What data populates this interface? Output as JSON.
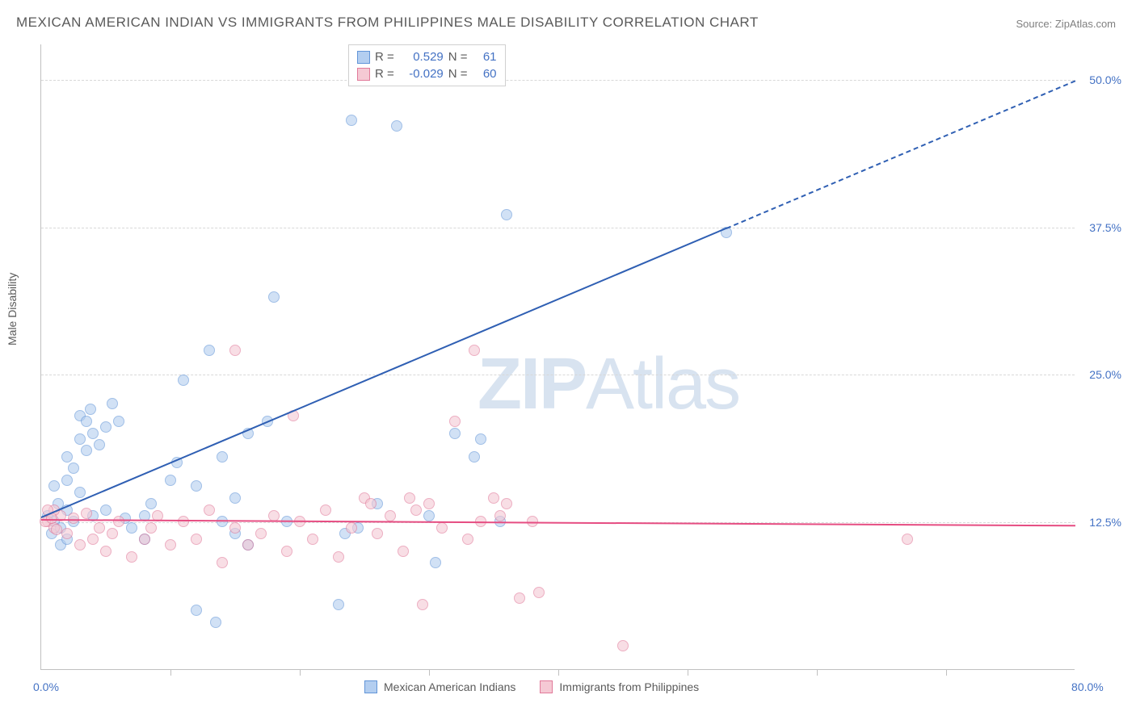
{
  "title": "MEXICAN AMERICAN INDIAN VS IMMIGRANTS FROM PHILIPPINES MALE DISABILITY CORRELATION CHART",
  "source": "Source: ZipAtlas.com",
  "ylabel": "Male Disability",
  "watermark_bold": "ZIP",
  "watermark_light": "Atlas",
  "chart": {
    "type": "scatter",
    "xlim": [
      0,
      80
    ],
    "ylim": [
      0,
      53
    ],
    "yticks": [
      12.5,
      25.0,
      37.5,
      50.0
    ],
    "ytick_labels": [
      "12.5%",
      "25.0%",
      "37.5%",
      "50.0%"
    ],
    "xticks": [
      10,
      20,
      30,
      40,
      50,
      60,
      70
    ],
    "xlabel_start": "0.0%",
    "xlabel_end": "80.0%",
    "background_color": "#ffffff",
    "grid_color": "#d8d8d8"
  },
  "series": [
    {
      "name": "Mexican American Indians",
      "color_fill": "#b3cef0",
      "color_stroke": "#6295d8",
      "R": "0.529",
      "N": "61",
      "trend": {
        "x1": 0,
        "y1": 13.0,
        "x2": 53,
        "y2": 37.5,
        "x2_dash": 80,
        "y2_dash": 50.0,
        "line_color": "#2f5fb3"
      },
      "points": [
        [
          0.5,
          13.0
        ],
        [
          1.0,
          12.5
        ],
        [
          1.5,
          12.0
        ],
        [
          2.0,
          13.5
        ],
        [
          0.8,
          11.5
        ],
        [
          1.3,
          14.0
        ],
        [
          2.0,
          16.0
        ],
        [
          2.5,
          17.0
        ],
        [
          3.0,
          15.0
        ],
        [
          1.5,
          10.5
        ],
        [
          2.0,
          11.0
        ],
        [
          3.5,
          18.5
        ],
        [
          4.0,
          20.0
        ],
        [
          3.0,
          19.5
        ],
        [
          2.5,
          12.5
        ],
        [
          5.0,
          20.5
        ],
        [
          5.5,
          22.5
        ],
        [
          6.0,
          21.0
        ],
        [
          4.5,
          19.0
        ],
        [
          6.5,
          12.8
        ],
        [
          3.8,
          22.0
        ],
        [
          7.0,
          12.0
        ],
        [
          8.0,
          13.0
        ],
        [
          10.0,
          16.0
        ],
        [
          10.5,
          17.5
        ],
        [
          11.0,
          24.5
        ],
        [
          12.0,
          15.5
        ],
        [
          13.0,
          27.0
        ],
        [
          14.0,
          18.0
        ],
        [
          15.0,
          14.5
        ],
        [
          16.0,
          20.0
        ],
        [
          17.5,
          21.0
        ],
        [
          18.0,
          31.5
        ],
        [
          19.0,
          12.5
        ],
        [
          12.0,
          5.0
        ],
        [
          13.5,
          4.0
        ],
        [
          16.0,
          10.5
        ],
        [
          23.0,
          5.5
        ],
        [
          23.5,
          11.5
        ],
        [
          24.0,
          46.5
        ],
        [
          24.5,
          12.0
        ],
        [
          26.0,
          14.0
        ],
        [
          27.5,
          46.0
        ],
        [
          14.0,
          12.5
        ],
        [
          30.0,
          13.0
        ],
        [
          30.5,
          9.0
        ],
        [
          32.0,
          20.0
        ],
        [
          33.5,
          18.0
        ],
        [
          34.0,
          19.5
        ],
        [
          35.5,
          12.5
        ],
        [
          36.0,
          38.5
        ],
        [
          15.0,
          11.5
        ],
        [
          1.0,
          15.5
        ],
        [
          2.0,
          18.0
        ],
        [
          3.0,
          21.5
        ],
        [
          5.0,
          13.5
        ],
        [
          3.5,
          21.0
        ],
        [
          8.5,
          14.0
        ],
        [
          4.0,
          13.0
        ],
        [
          53.0,
          37.0
        ],
        [
          8.0,
          11.0
        ]
      ]
    },
    {
      "name": "Immigrants from Philippines",
      "color_fill": "#f5c9d4",
      "color_stroke": "#e17a9a",
      "R": "-0.029",
      "N": "60",
      "trend": {
        "x1": 0,
        "y1": 12.8,
        "x2": 80,
        "y2": 12.3,
        "line_color": "#e64d82"
      },
      "points": [
        [
          0.5,
          12.5
        ],
        [
          1.0,
          12.0
        ],
        [
          1.5,
          13.0
        ],
        [
          2.0,
          11.5
        ],
        [
          2.5,
          12.8
        ],
        [
          3.0,
          10.5
        ],
        [
          3.5,
          13.2
        ],
        [
          4.0,
          11.0
        ],
        [
          4.5,
          12.0
        ],
        [
          5.0,
          10.0
        ],
        [
          5.5,
          11.5
        ],
        [
          6.0,
          12.5
        ],
        [
          7.0,
          9.5
        ],
        [
          8.0,
          11.0
        ],
        [
          8.5,
          12.0
        ],
        [
          9.0,
          13.0
        ],
        [
          10.0,
          10.5
        ],
        [
          11.0,
          12.5
        ],
        [
          12.0,
          11.0
        ],
        [
          13.0,
          13.5
        ],
        [
          14.0,
          9.0
        ],
        [
          15.0,
          12.0
        ],
        [
          15.0,
          27.0
        ],
        [
          16.0,
          10.5
        ],
        [
          17.0,
          11.5
        ],
        [
          18.0,
          13.0
        ],
        [
          19.0,
          10.0
        ],
        [
          19.5,
          21.5
        ],
        [
          20.0,
          12.5
        ],
        [
          21.0,
          11.0
        ],
        [
          22.0,
          13.5
        ],
        [
          23.0,
          9.5
        ],
        [
          24.0,
          12.0
        ],
        [
          25.0,
          14.5
        ],
        [
          25.5,
          14.0
        ],
        [
          26.0,
          11.5
        ],
        [
          27.0,
          13.0
        ],
        [
          28.0,
          10.0
        ],
        [
          28.5,
          14.5
        ],
        [
          29.0,
          13.5
        ],
        [
          29.5,
          5.5
        ],
        [
          30.0,
          14.0
        ],
        [
          31.0,
          12.0
        ],
        [
          32.0,
          21.0
        ],
        [
          33.0,
          11.0
        ],
        [
          33.5,
          27.0
        ],
        [
          34.0,
          12.5
        ],
        [
          35.0,
          14.5
        ],
        [
          35.5,
          13.0
        ],
        [
          36.0,
          14.0
        ],
        [
          37.0,
          6.0
        ],
        [
          38.0,
          12.5
        ],
        [
          38.5,
          6.5
        ],
        [
          45.0,
          2.0
        ],
        [
          67.0,
          11.0
        ],
        [
          1.0,
          13.5
        ],
        [
          0.5,
          13.5
        ],
        [
          0.3,
          12.5
        ],
        [
          0.8,
          12.8
        ],
        [
          1.2,
          11.8
        ]
      ]
    }
  ],
  "legend_top": {
    "R_label": "R =",
    "N_label": "N ="
  },
  "legend_bottom": [
    {
      "label": "Mexican American Indians",
      "fill": "#b3cef0",
      "stroke": "#6295d8"
    },
    {
      "label": "Immigrants from Philippines",
      "fill": "#f5c9d4",
      "stroke": "#e17a9a"
    }
  ]
}
